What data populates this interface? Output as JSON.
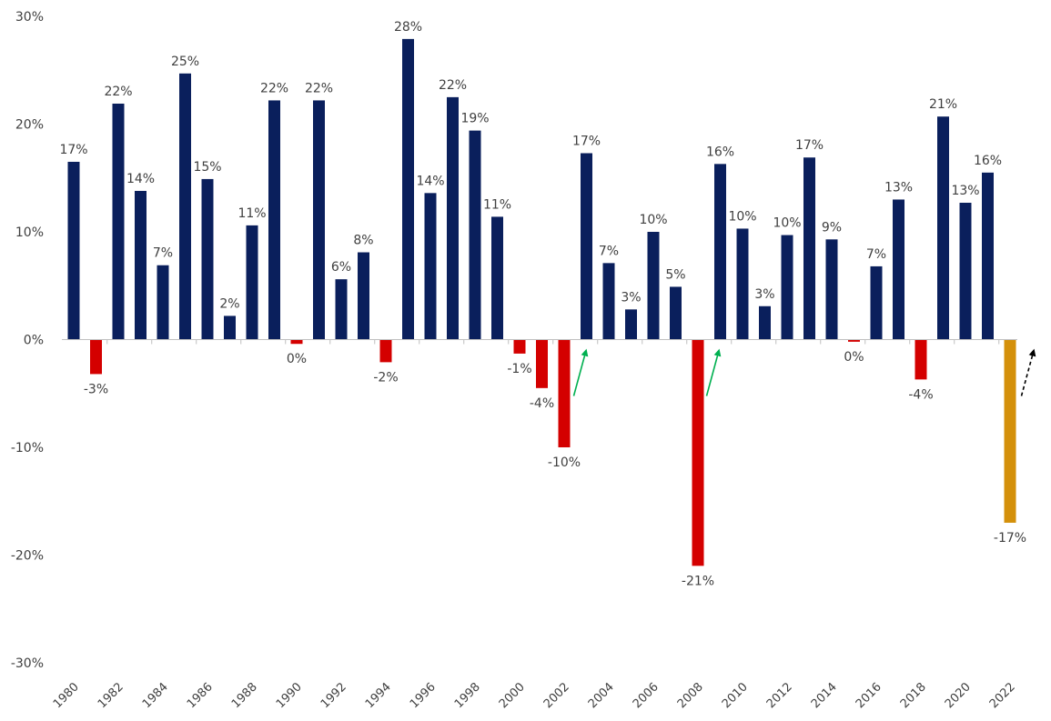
{
  "chart_data": {
    "type": "bar",
    "categories": [
      "1980",
      "1981",
      "1982",
      "1983",
      "1984",
      "1985",
      "1986",
      "1987",
      "1988",
      "1989",
      "1990",
      "1991",
      "1992",
      "1993",
      "1994",
      "1995",
      "1996",
      "1997",
      "1998",
      "1999",
      "2000",
      "2001",
      "2002",
      "2003",
      "2004",
      "2005",
      "2006",
      "2007",
      "2008",
      "2009",
      "2010",
      "2011",
      "2012",
      "2013",
      "2014",
      "2015",
      "2016",
      "2017",
      "2018",
      "2019",
      "2020",
      "2021",
      "2022"
    ],
    "values": [
      16.5,
      -3.2,
      21.9,
      13.8,
      6.9,
      24.7,
      14.9,
      2.2,
      10.6,
      22.2,
      -0.4,
      22.2,
      5.6,
      8.1,
      -2.1,
      27.9,
      13.6,
      22.5,
      19.4,
      11.4,
      -1.3,
      -4.5,
      -10.0,
      17.3,
      7.1,
      2.8,
      10.0,
      4.9,
      -21.0,
      16.3,
      10.3,
      3.1,
      9.7,
      16.9,
      9.3,
      -0.2,
      6.8,
      13.0,
      -3.7,
      20.7,
      12.7,
      15.5,
      -17.0
    ],
    "data_labels": [
      "17%",
      "-3%",
      "22%",
      "14%",
      "7%",
      "25%",
      "15%",
      "2%",
      "11%",
      "22%",
      "0%",
      "22%",
      "6%",
      "8%",
      "-2%",
      "28%",
      "14%",
      "22%",
      "19%",
      "11%",
      "-1%",
      "-4%",
      "-10%",
      "17%",
      "7%",
      "3%",
      "10%",
      "5%",
      "-21%",
      "16%",
      "10%",
      "3%",
      "10%",
      "17%",
      "9%",
      "0%",
      "7%",
      "13%",
      "-4%",
      "21%",
      "13%",
      "16%",
      "-17%"
    ],
    "x_tick_labels": [
      "1980",
      "1982",
      "1984",
      "1986",
      "1988",
      "1990",
      "1992",
      "1994",
      "1996",
      "1998",
      "2000",
      "2002",
      "2004",
      "2006",
      "2008",
      "2010",
      "2012",
      "2014",
      "2016",
      "2018",
      "2020",
      "2022"
    ],
    "y_tick_labels": [
      "30%",
      "20%",
      "10%",
      "0%",
      "-10%",
      "-20%",
      "-30%"
    ],
    "ylim": [
      -30,
      30
    ],
    "y_ticks": [
      30,
      20,
      10,
      0,
      -10,
      -20,
      -30
    ],
    "grid": false,
    "legend": "none",
    "title": "",
    "xlabel": "",
    "ylabel": "",
    "colors": {
      "positive": "#0a1f5c",
      "negative": "#d40000",
      "current": "#d4900a",
      "arrow_green": "#00b050",
      "arrow_black": "#000000",
      "axis": "#bfbfbf",
      "text": "#404040"
    },
    "annotations": [
      {
        "type": "arrow",
        "color": "green",
        "near": "2003"
      },
      {
        "type": "arrow",
        "color": "green",
        "near": "2009"
      },
      {
        "type": "dashed-arrow",
        "color": "black",
        "near": "2023"
      }
    ]
  }
}
